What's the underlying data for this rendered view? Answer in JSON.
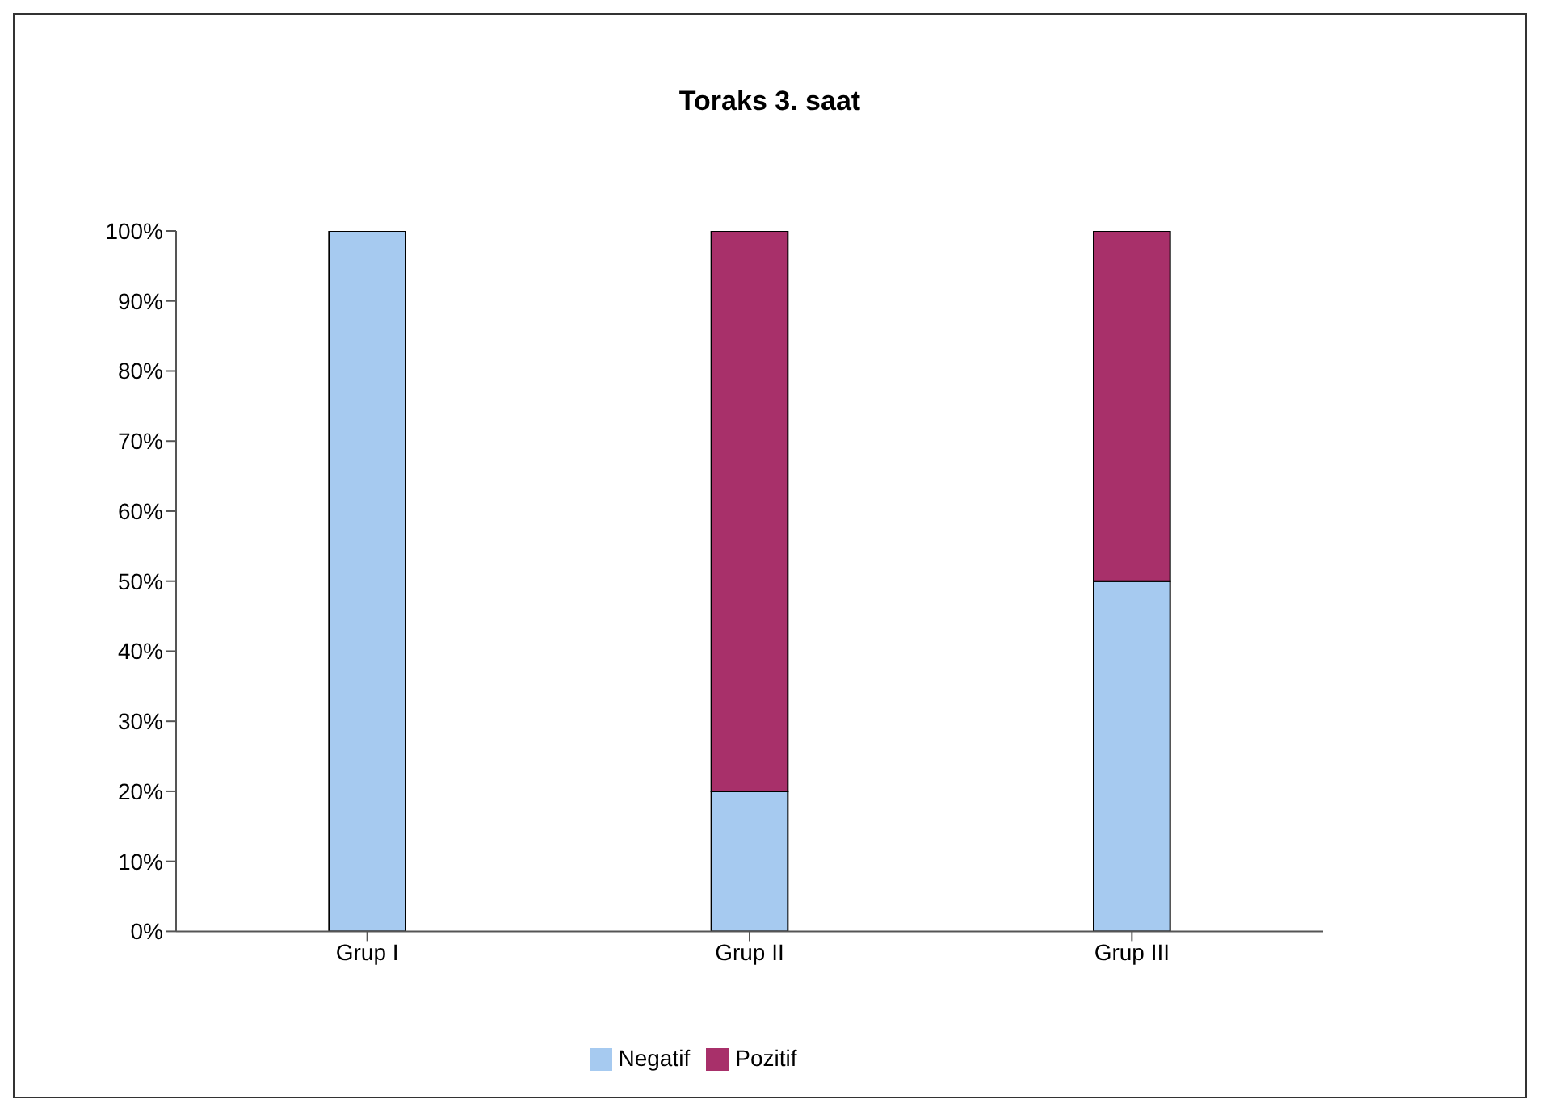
{
  "chart_data": {
    "type": "bar",
    "title": "Toraks 3. saat",
    "categories": [
      "Grup I",
      "Grup II",
      "Grup III"
    ],
    "stacked": true,
    "series": [
      {
        "name": "Negatif",
        "color": "#a6caf0",
        "values": [
          100,
          20,
          50
        ]
      },
      {
        "name": "Pozitif",
        "color": "#a8306a",
        "values": [
          0,
          80,
          50
        ]
      }
    ],
    "ylim": [
      0,
      100
    ],
    "yticks": [
      {
        "value": 0,
        "label": "0%"
      },
      {
        "value": 10,
        "label": "10%"
      },
      {
        "value": 20,
        "label": "20%"
      },
      {
        "value": 30,
        "label": "30%"
      },
      {
        "value": 40,
        "label": "40%"
      },
      {
        "value": 50,
        "label": "50%"
      },
      {
        "value": 60,
        "label": "60%"
      },
      {
        "value": 70,
        "label": "70%"
      },
      {
        "value": 80,
        "label": "80%"
      },
      {
        "value": 90,
        "label": "90%"
      },
      {
        "value": 100,
        "label": "100%"
      }
    ],
    "grid": false,
    "legend": "bottom"
  }
}
